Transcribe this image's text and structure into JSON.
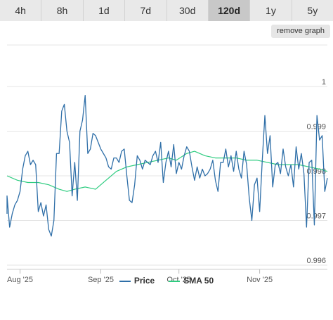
{
  "tabs": [
    {
      "label": "4h",
      "active": false
    },
    {
      "label": "8h",
      "active": false
    },
    {
      "label": "1d",
      "active": false
    },
    {
      "label": "7d",
      "active": false
    },
    {
      "label": "30d",
      "active": false
    },
    {
      "label": "120d",
      "active": true
    },
    {
      "label": "1y",
      "active": false
    },
    {
      "label": "5y",
      "active": false
    }
  ],
  "remove_graph_label": "remove graph",
  "chart_data": {
    "type": "line",
    "ylim": [
      0.996,
      1.0
    ],
    "y_ticks": [
      {
        "value": 1.0,
        "label": "1"
      },
      {
        "value": 0.999,
        "label": "0.999"
      },
      {
        "value": 0.998,
        "label": "0.998"
      },
      {
        "value": 0.997,
        "label": "0.997"
      },
      {
        "value": 0.996,
        "label": "0.996"
      }
    ],
    "x_range": [
      "2025-07-27",
      "2025-11-27"
    ],
    "x_ticks": [
      {
        "date": "2025-08-01",
        "label": "Aug '25"
      },
      {
        "date": "2025-09-01",
        "label": "Sep '25"
      },
      {
        "date": "2025-10-01",
        "label": "Oct '25"
      },
      {
        "date": "2025-11-01",
        "label": "Nov '25"
      }
    ],
    "grid": true,
    "legend_position": "bottom",
    "series": [
      {
        "name": "Price",
        "color": "#2f6fa8",
        "points": [
          [
            "2025-07-27",
            0.99715
          ],
          [
            "2025-07-27",
            0.99755
          ],
          [
            "2025-07-28",
            0.99685
          ],
          [
            "2025-07-29",
            0.99715
          ],
          [
            "2025-07-30",
            0.99735
          ],
          [
            "2025-07-31",
            0.99745
          ],
          [
            "2025-08-01",
            0.99765
          ],
          [
            "2025-08-02",
            0.99815
          ],
          [
            "2025-08-03",
            0.99845
          ],
          [
            "2025-08-04",
            0.99855
          ],
          [
            "2025-08-05",
            0.99825
          ],
          [
            "2025-08-06",
            0.99835
          ],
          [
            "2025-08-07",
            0.99825
          ],
          [
            "2025-08-08",
            0.9972
          ],
          [
            "2025-08-09",
            0.9974
          ],
          [
            "2025-08-10",
            0.9971
          ],
          [
            "2025-08-11",
            0.99735
          ],
          [
            "2025-08-12",
            0.9968
          ],
          [
            "2025-08-13",
            0.99665
          ],
          [
            "2025-08-14",
            0.997
          ],
          [
            "2025-08-15",
            0.9985
          ],
          [
            "2025-08-16",
            0.9985
          ],
          [
            "2025-08-17",
            0.99945
          ],
          [
            "2025-08-18",
            0.9996
          ],
          [
            "2025-08-19",
            0.999
          ],
          [
            "2025-08-20",
            0.99875
          ],
          [
            "2025-08-21",
            0.99755
          ],
          [
            "2025-08-22",
            0.9983
          ],
          [
            "2025-08-23",
            0.99745
          ],
          [
            "2025-08-24",
            0.999
          ],
          [
            "2025-08-25",
            0.99925
          ],
          [
            "2025-08-26",
            0.9998
          ],
          [
            "2025-08-27",
            0.9985
          ],
          [
            "2025-08-28",
            0.9986
          ],
          [
            "2025-08-29",
            0.99895
          ],
          [
            "2025-08-30",
            0.9989
          ],
          [
            "2025-08-31",
            0.99875
          ],
          [
            "2025-09-01",
            0.9986
          ],
          [
            "2025-09-02",
            0.9985
          ],
          [
            "2025-09-03",
            0.9984
          ],
          [
            "2025-09-04",
            0.9982
          ],
          [
            "2025-09-05",
            0.99815
          ],
          [
            "2025-09-06",
            0.9984
          ],
          [
            "2025-09-07",
            0.9984
          ],
          [
            "2025-09-08",
            0.9983
          ],
          [
            "2025-09-09",
            0.99855
          ],
          [
            "2025-09-10",
            0.9986
          ],
          [
            "2025-09-11",
            0.998
          ],
          [
            "2025-09-12",
            0.99745
          ],
          [
            "2025-09-13",
            0.9974
          ],
          [
            "2025-09-14",
            0.9978
          ],
          [
            "2025-09-15",
            0.99845
          ],
          [
            "2025-09-16",
            0.99835
          ],
          [
            "2025-09-17",
            0.99815
          ],
          [
            "2025-09-18",
            0.99835
          ],
          [
            "2025-09-19",
            0.9983
          ],
          [
            "2025-09-20",
            0.99825
          ],
          [
            "2025-09-21",
            0.99845
          ],
          [
            "2025-09-22",
            0.99855
          ],
          [
            "2025-09-23",
            0.9983
          ],
          [
            "2025-09-24",
            0.99875
          ],
          [
            "2025-09-25",
            0.99785
          ],
          [
            "2025-09-26",
            0.9983
          ],
          [
            "2025-09-27",
            0.99855
          ],
          [
            "2025-09-28",
            0.9982
          ],
          [
            "2025-09-29",
            0.9987
          ],
          [
            "2025-09-30",
            0.99805
          ],
          [
            "2025-10-01",
            0.9983
          ],
          [
            "2025-10-02",
            0.99815
          ],
          [
            "2025-10-03",
            0.99845
          ],
          [
            "2025-10-04",
            0.99865
          ],
          [
            "2025-10-05",
            0.99855
          ],
          [
            "2025-10-06",
            0.9982
          ],
          [
            "2025-10-07",
            0.9979
          ],
          [
            "2025-10-08",
            0.9982
          ],
          [
            "2025-10-09",
            0.99795
          ],
          [
            "2025-10-10",
            0.99815
          ],
          [
            "2025-10-11",
            0.998
          ],
          [
            "2025-10-12",
            0.99805
          ],
          [
            "2025-10-13",
            0.99815
          ],
          [
            "2025-10-14",
            0.99835
          ],
          [
            "2025-10-15",
            0.9979
          ],
          [
            "2025-10-16",
            0.99765
          ],
          [
            "2025-10-17",
            0.9983
          ],
          [
            "2025-10-18",
            0.9983
          ],
          [
            "2025-10-19",
            0.9986
          ],
          [
            "2025-10-20",
            0.9982
          ],
          [
            "2025-10-21",
            0.99845
          ],
          [
            "2025-10-22",
            0.9981
          ],
          [
            "2025-10-23",
            0.99855
          ],
          [
            "2025-10-24",
            0.99815
          ],
          [
            "2025-10-25",
            0.99795
          ],
          [
            "2025-10-26",
            0.99855
          ],
          [
            "2025-10-27",
            0.99825
          ],
          [
            "2025-10-28",
            0.9975
          ],
          [
            "2025-10-29",
            0.997
          ],
          [
            "2025-10-30",
            0.9978
          ],
          [
            "2025-10-31",
            0.99795
          ],
          [
            "2025-11-01",
            0.9972
          ],
          [
            "2025-11-02",
            0.99835
          ],
          [
            "2025-11-03",
            0.99935
          ],
          [
            "2025-11-04",
            0.9985
          ],
          [
            "2025-11-05",
            0.9989
          ],
          [
            "2025-11-06",
            0.99775
          ],
          [
            "2025-11-07",
            0.99825
          ],
          [
            "2025-11-08",
            0.9983
          ],
          [
            "2025-11-09",
            0.99805
          ],
          [
            "2025-11-10",
            0.9986
          ],
          [
            "2025-11-11",
            0.9982
          ],
          [
            "2025-11-12",
            0.998
          ],
          [
            "2025-11-13",
            0.99825
          ],
          [
            "2025-11-14",
            0.99775
          ],
          [
            "2025-11-15",
            0.99865
          ],
          [
            "2025-11-16",
            0.99815
          ],
          [
            "2025-11-17",
            0.9985
          ],
          [
            "2025-11-18",
            0.99805
          ],
          [
            "2025-11-19",
            0.99685
          ],
          [
            "2025-11-20",
            0.9983
          ],
          [
            "2025-11-21",
            0.99835
          ],
          [
            "2025-11-22",
            0.9969
          ],
          [
            "2025-11-23",
            0.99935
          ],
          [
            "2025-11-24",
            0.9988
          ],
          [
            "2025-11-25",
            0.9989
          ],
          [
            "2025-11-26",
            0.99765
          ],
          [
            "2025-11-27",
            0.99795
          ]
        ]
      },
      {
        "name": "SMA 50",
        "color": "#2ecc80",
        "points": [
          [
            "2025-07-27",
            0.998
          ],
          [
            "2025-07-31",
            0.9979
          ],
          [
            "2025-08-04",
            0.99785
          ],
          [
            "2025-08-08",
            0.99785
          ],
          [
            "2025-08-12",
            0.9978
          ],
          [
            "2025-08-16",
            0.9977
          ],
          [
            "2025-08-19",
            0.99765
          ],
          [
            "2025-08-22",
            0.9977
          ],
          [
            "2025-08-26",
            0.99775
          ],
          [
            "2025-08-30",
            0.9977
          ],
          [
            "2025-09-03",
            0.9979
          ],
          [
            "2025-09-07",
            0.9981
          ],
          [
            "2025-09-11",
            0.9982
          ],
          [
            "2025-09-15",
            0.99825
          ],
          [
            "2025-09-19",
            0.9983
          ],
          [
            "2025-09-23",
            0.99835
          ],
          [
            "2025-09-27",
            0.9984
          ],
          [
            "2025-09-30",
            0.99835
          ],
          [
            "2025-10-04",
            0.9985
          ],
          [
            "2025-10-07",
            0.99855
          ],
          [
            "2025-10-11",
            0.99845
          ],
          [
            "2025-10-15",
            0.9984
          ],
          [
            "2025-10-19",
            0.9984
          ],
          [
            "2025-10-23",
            0.9984
          ],
          [
            "2025-10-27",
            0.99835
          ],
          [
            "2025-10-31",
            0.99835
          ],
          [
            "2025-11-04",
            0.9983
          ],
          [
            "2025-11-08",
            0.99825
          ],
          [
            "2025-11-12",
            0.99825
          ],
          [
            "2025-11-16",
            0.99825
          ],
          [
            "2025-11-20",
            0.9982
          ],
          [
            "2025-11-24",
            0.99815
          ],
          [
            "2025-11-27",
            0.9981
          ]
        ]
      }
    ]
  }
}
